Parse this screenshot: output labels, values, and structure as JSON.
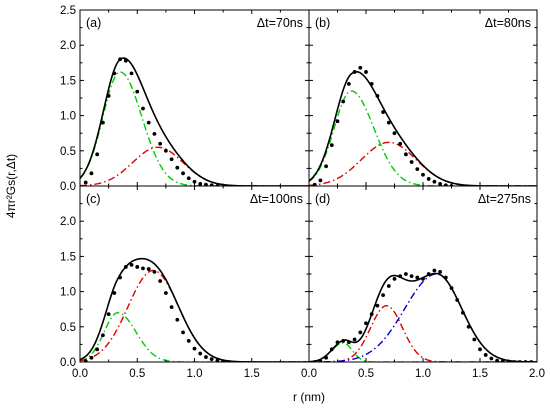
{
  "chart_data": {
    "type": "line",
    "layout": "2x2 grid, shared axes",
    "xlabel": "r (nm)",
    "ylabel": "4πr²Gs(r,Δt)",
    "xlim": [
      0,
      2.0
    ],
    "ylim": [
      0,
      2.5
    ],
    "x_ticks": [
      "0.0",
      "0.5",
      "1.0",
      "1.5",
      "2.0"
    ],
    "y_ticks": [
      "0.0",
      "0.5",
      "1.0",
      "1.5",
      "2.0",
      "2.5"
    ],
    "grid": false,
    "colors": {
      "total": "#000000",
      "c1": "#00cc00",
      "c2": "#dd0000",
      "c3": "#0000cc",
      "data": "#000000"
    },
    "panels": [
      {
        "label": "(a)",
        "dt": "Δt=70ns",
        "dt_symbol": "Δ",
        "dt_text": "t=70ns",
        "components": [
          {
            "color": "green",
            "style": "dash-dot",
            "amp": 1.62,
            "mu": 0.35,
            "sl": 0.15,
            "sr": 0.19
          },
          {
            "color": "red",
            "style": "dash-dot",
            "amp": 0.55,
            "mu": 0.68,
            "sl": 0.22,
            "sr": 0.22
          }
        ],
        "points": [
          [
            0.05,
            0.05
          ],
          [
            0.1,
            0.18
          ],
          [
            0.15,
            0.45
          ],
          [
            0.2,
            0.9
          ],
          [
            0.25,
            1.28
          ],
          [
            0.3,
            1.6
          ],
          [
            0.35,
            1.8
          ],
          [
            0.4,
            1.78
          ],
          [
            0.45,
            1.6
          ],
          [
            0.5,
            1.34
          ],
          [
            0.55,
            1.1
          ],
          [
            0.6,
            0.9
          ],
          [
            0.65,
            0.74
          ],
          [
            0.7,
            0.6
          ],
          [
            0.75,
            0.5
          ],
          [
            0.8,
            0.38
          ],
          [
            0.85,
            0.26
          ],
          [
            0.9,
            0.18
          ],
          [
            0.95,
            0.11
          ],
          [
            1.0,
            0.06
          ],
          [
            1.05,
            0.03
          ],
          [
            1.1,
            0.02
          ],
          [
            1.15,
            0.01
          ],
          [
            1.2,
            0.0
          ]
        ]
      },
      {
        "label": "(b)",
        "dt": "Δt=80ns",
        "dt_symbol": "Δ",
        "dt_text": "t=80ns",
        "components": [
          {
            "color": "green",
            "style": "dash-dot",
            "amp": 1.35,
            "mu": 0.37,
            "sl": 0.15,
            "sr": 0.2
          },
          {
            "color": "red",
            "style": "dash-dot",
            "amp": 0.62,
            "mu": 0.7,
            "sl": 0.24,
            "sr": 0.24
          }
        ],
        "points": [
          [
            0.05,
            0.02
          ],
          [
            0.1,
            0.08
          ],
          [
            0.15,
            0.28
          ],
          [
            0.2,
            0.58
          ],
          [
            0.25,
            0.92
          ],
          [
            0.3,
            1.2
          ],
          [
            0.35,
            1.45
          ],
          [
            0.4,
            1.62
          ],
          [
            0.45,
            1.68
          ],
          [
            0.5,
            1.62
          ],
          [
            0.55,
            1.45
          ],
          [
            0.6,
            1.28
          ],
          [
            0.65,
            1.05
          ],
          [
            0.7,
            0.9
          ],
          [
            0.75,
            0.75
          ],
          [
            0.8,
            0.6
          ],
          [
            0.85,
            0.45
          ],
          [
            0.9,
            0.34
          ],
          [
            0.95,
            0.24
          ],
          [
            1.0,
            0.16
          ],
          [
            1.05,
            0.1
          ],
          [
            1.1,
            0.06
          ],
          [
            1.15,
            0.03
          ],
          [
            1.2,
            0.01
          ],
          [
            1.25,
            0.0
          ]
        ]
      },
      {
        "label": "(c)",
        "dt": "Δt=100ns",
        "dt_symbol": "Δ",
        "dt_text": "t=100ns",
        "components": [
          {
            "color": "green",
            "style": "dash-dot",
            "amp": 0.7,
            "mu": 0.33,
            "sl": 0.12,
            "sr": 0.16
          },
          {
            "color": "red",
            "style": "dash-dot",
            "amp": 1.3,
            "mu": 0.64,
            "sl": 0.22,
            "sr": 0.22
          }
        ],
        "points": [
          [
            0.05,
            0.01
          ],
          [
            0.1,
            0.06
          ],
          [
            0.15,
            0.18
          ],
          [
            0.2,
            0.38
          ],
          [
            0.25,
            0.68
          ],
          [
            0.3,
            0.98
          ],
          [
            0.35,
            1.2
          ],
          [
            0.4,
            1.35
          ],
          [
            0.45,
            1.38
          ],
          [
            0.5,
            1.35
          ],
          [
            0.55,
            1.33
          ],
          [
            0.6,
            1.32
          ],
          [
            0.65,
            1.28
          ],
          [
            0.7,
            1.15
          ],
          [
            0.75,
            0.98
          ],
          [
            0.8,
            0.78
          ],
          [
            0.85,
            0.6
          ],
          [
            0.9,
            0.42
          ],
          [
            0.95,
            0.3
          ],
          [
            1.0,
            0.19
          ],
          [
            1.05,
            0.12
          ],
          [
            1.1,
            0.07
          ],
          [
            1.15,
            0.04
          ],
          [
            1.2,
            0.02
          ],
          [
            1.25,
            0.01
          ],
          [
            1.3,
            0.0
          ]
        ]
      },
      {
        "label": "(d)",
        "dt": "Δt=275ns",
        "dt_symbol": "Δ",
        "dt_text": "t=275ns",
        "components": [
          {
            "color": "green",
            "style": "dash-dot",
            "amp": 0.27,
            "mu": 0.3,
            "sl": 0.1,
            "sr": 0.08
          },
          {
            "color": "red",
            "style": "dash-dot",
            "amp": 0.8,
            "mu": 0.68,
            "sl": 0.14,
            "sr": 0.14
          },
          {
            "color": "blue",
            "style": "dash-dot",
            "amp": 1.25,
            "mu": 1.12,
            "sl": 0.28,
            "sr": 0.22
          }
        ],
        "points": [
          [
            0.05,
            0.0
          ],
          [
            0.1,
            0.01
          ],
          [
            0.15,
            0.06
          ],
          [
            0.2,
            0.18
          ],
          [
            0.25,
            0.28
          ],
          [
            0.3,
            0.3
          ],
          [
            0.35,
            0.28
          ],
          [
            0.4,
            0.32
          ],
          [
            0.45,
            0.42
          ],
          [
            0.5,
            0.55
          ],
          [
            0.55,
            0.68
          ],
          [
            0.6,
            0.8
          ],
          [
            0.65,
            0.95
          ],
          [
            0.7,
            1.08
          ],
          [
            0.75,
            1.18
          ],
          [
            0.8,
            1.22
          ],
          [
            0.85,
            1.25
          ],
          [
            0.9,
            1.22
          ],
          [
            0.95,
            1.2
          ],
          [
            1.0,
            1.18
          ],
          [
            1.05,
            1.25
          ],
          [
            1.1,
            1.3
          ],
          [
            1.15,
            1.28
          ],
          [
            1.2,
            1.2
          ],
          [
            1.25,
            1.05
          ],
          [
            1.3,
            0.88
          ],
          [
            1.35,
            0.7
          ],
          [
            1.4,
            0.5
          ],
          [
            1.45,
            0.32
          ],
          [
            1.5,
            0.18
          ],
          [
            1.55,
            0.1
          ],
          [
            1.6,
            0.05
          ],
          [
            1.65,
            0.02
          ],
          [
            1.7,
            0.01
          ],
          [
            1.75,
            0.0
          ],
          [
            1.8,
            0.0
          ],
          [
            1.85,
            0.0
          ],
          [
            1.9,
            0.0
          ],
          [
            1.95,
            0.0
          ]
        ]
      }
    ]
  }
}
